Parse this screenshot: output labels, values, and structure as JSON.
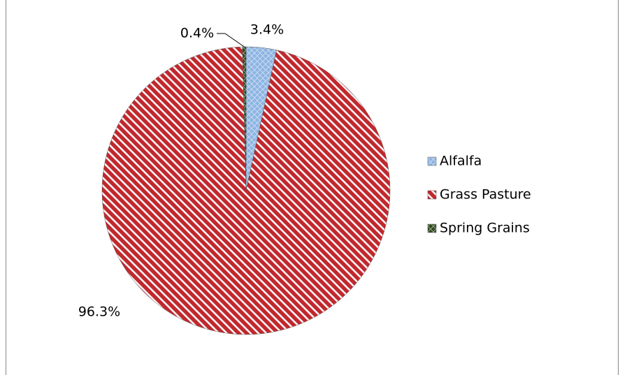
{
  "chart_data": {
    "type": "pie",
    "categories": [
      "Alfalfa",
      "Grass Pasture",
      "Spring Grains"
    ],
    "values": [
      3.4,
      96.3,
      0.4
    ],
    "value_labels": [
      "3.4%",
      "96.3%",
      "0.4%"
    ],
    "colors": [
      "#8db4e2",
      "#c0282d",
      "#2e4a1e"
    ],
    "legend": "right"
  }
}
